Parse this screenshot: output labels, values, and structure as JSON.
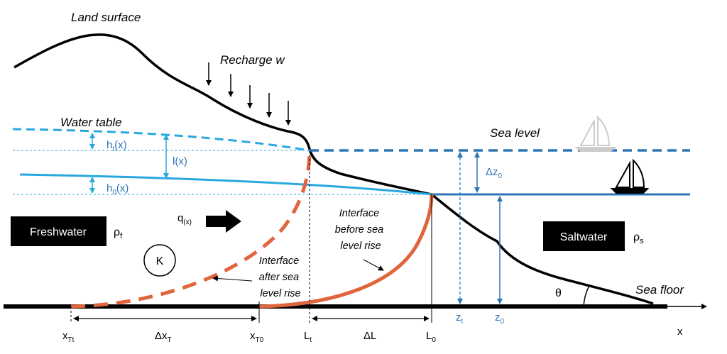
{
  "labels": {
    "land_surface": "Land surface",
    "recharge": "Recharge w",
    "water_table": "Water table",
    "sea_level": "Sea level",
    "sea_floor": "Sea floor",
    "ht": "h",
    "ht_sub": "t",
    "ht_arg": "(x)",
    "h0": "h",
    "h0_sub": "0",
    "h0_arg": "(x)",
    "l": "l(x)",
    "dz0": "Δz",
    "dz0_sub": "0",
    "q": "q",
    "q_sub": "(x)",
    "freshwater": "Freshwater",
    "rho_f": "ρ",
    "rho_f_sub": "f",
    "saltwater": "Saltwater",
    "rho_s": "ρ",
    "rho_s_sub": "s",
    "k": "K",
    "interface_before": [
      "Interface",
      "before sea",
      "level rise"
    ],
    "interface_after": [
      "Interface",
      "after sea",
      "level rise"
    ],
    "theta": "θ",
    "zt": "z",
    "zt_sub": "t",
    "z0": "z",
    "z0_sub": "0",
    "x_tt": "x",
    "x_tt_sub": "Tt",
    "dxt": "Δx",
    "dxt_sub": "T",
    "x_t0": "x",
    "x_t0_sub": "T0",
    "lt": "L",
    "lt_sub": "t",
    "dl": "ΔL",
    "l0": "L",
    "l0_sub": "0",
    "x_axis": "x"
  },
  "colors": {
    "water": "#29a8e0",
    "sea": "#2e75b6",
    "interface": "#e0643c",
    "ink": "#000000"
  }
}
